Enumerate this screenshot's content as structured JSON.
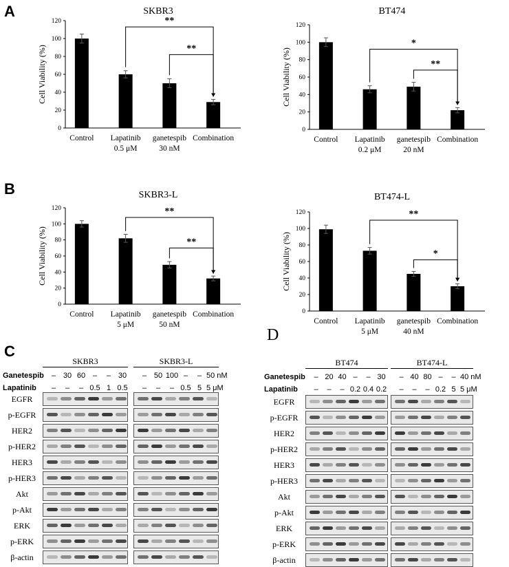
{
  "panels": {
    "a": "A",
    "b": "B",
    "c": "C",
    "d": "D"
  },
  "chart_data": [
    {
      "type": "bar",
      "title": "SKBR3",
      "ylabel": "Cell Viability (%)",
      "ylim": [
        0,
        120
      ],
      "yticks": [
        0,
        20,
        40,
        60,
        80,
        100,
        120
      ],
      "categories": [
        "Control",
        "Lapatinib\n0.5 μM",
        "ganetespib\n30 nM",
        "Combination"
      ],
      "values": [
        100,
        60,
        50,
        29
      ],
      "errors": [
        5,
        4,
        5,
        3
      ],
      "brackets": [
        {
          "from": 1,
          "to": 3,
          "label": "**",
          "level": 113
        },
        {
          "from": 2,
          "to": 3,
          "label": "**",
          "level": 82
        }
      ]
    },
    {
      "type": "bar",
      "title": "BT474",
      "ylabel": "Cell Viability (%)",
      "ylim": [
        0,
        120
      ],
      "yticks": [
        0,
        20,
        40,
        60,
        80,
        100,
        120
      ],
      "categories": [
        "Control",
        "Lapatinib\n0.2 μM",
        "ganetespib\n20 nM",
        "Combination"
      ],
      "values": [
        100,
        46,
        49,
        22
      ],
      "errors": [
        5,
        4,
        5,
        3
      ],
      "brackets": [
        {
          "from": 1,
          "to": 3,
          "label": "*",
          "level": 92
        },
        {
          "from": 2,
          "to": 3,
          "label": "**",
          "level": 68
        }
      ]
    },
    {
      "type": "bar",
      "title": "SKBR3-L",
      "ylabel": "Cell Viability (%)",
      "ylim": [
        0,
        120
      ],
      "yticks": [
        0,
        20,
        40,
        60,
        80,
        100,
        120
      ],
      "categories": [
        "Control",
        "Lapatinib\n5 μM",
        "ganetespib\n50 nM",
        "Combination"
      ],
      "values": [
        100,
        82,
        49,
        32
      ],
      "errors": [
        4,
        5,
        4,
        3
      ],
      "brackets": [
        {
          "from": 1,
          "to": 3,
          "label": "**",
          "level": 108
        },
        {
          "from": 2,
          "to": 3,
          "label": "**",
          "level": 70
        }
      ]
    },
    {
      "type": "bar",
      "title": "BT474-L",
      "ylabel": "Cell Viability (%)",
      "ylim": [
        0,
        120
      ],
      "yticks": [
        0,
        20,
        40,
        60,
        80,
        100,
        120
      ],
      "categories": [
        "Control",
        "Lapatinib\n5 μM",
        "ganetespib\n40 nM",
        "Combination"
      ],
      "values": [
        99,
        73,
        45,
        30
      ],
      "errors": [
        5,
        4,
        3,
        3
      ],
      "brackets": [
        {
          "from": 1,
          "to": 3,
          "label": "**",
          "level": 110
        },
        {
          "from": 2,
          "to": 3,
          "label": "*",
          "level": 62
        }
      ]
    }
  ],
  "blots": {
    "c": {
      "titles": [
        "SKBR3",
        "SKBR3-L"
      ],
      "treat_labels": [
        "Ganetespib",
        "Lapatinib"
      ],
      "ganetespib": [
        "–",
        "30",
        "60",
        "–",
        "–",
        "30",
        "",
        "–",
        "50",
        "100",
        "–",
        "–",
        "50 nM"
      ],
      "lapatinib": [
        "–",
        "–",
        "–",
        "0.5",
        "1",
        "0.5",
        "",
        "–",
        "–",
        "–",
        "0.5",
        "5",
        "5 μM"
      ],
      "proteins": [
        "EGFR",
        "p-EGFR",
        "HER2",
        "p-HER2",
        "HER3",
        "p-HER3",
        "Akt",
        "p-Akt",
        "ERK",
        "p-ERK",
        "β-actin"
      ]
    },
    "d": {
      "titles": [
        "BT474",
        "BT474-L"
      ],
      "treat_labels": [
        "Ganetespib",
        "Lapatinib"
      ],
      "ganetespib": [
        "–",
        "20",
        "40",
        "–",
        "–",
        "30",
        "",
        "–",
        "40",
        "80",
        "–",
        "–",
        "40 nM"
      ],
      "lapatinib": [
        "–",
        "–",
        "–",
        "0.2",
        "0.4",
        "0.2",
        "",
        "–",
        "–",
        "–",
        "0.2",
        "5",
        "5 μM"
      ],
      "proteins": [
        "EGFR",
        "p-EGFR",
        "HER2",
        "p-HER2",
        "HER3",
        "p-HER3",
        "Akt",
        "p-Akt",
        "ERK",
        "p-ERK",
        "β-actin"
      ]
    }
  }
}
